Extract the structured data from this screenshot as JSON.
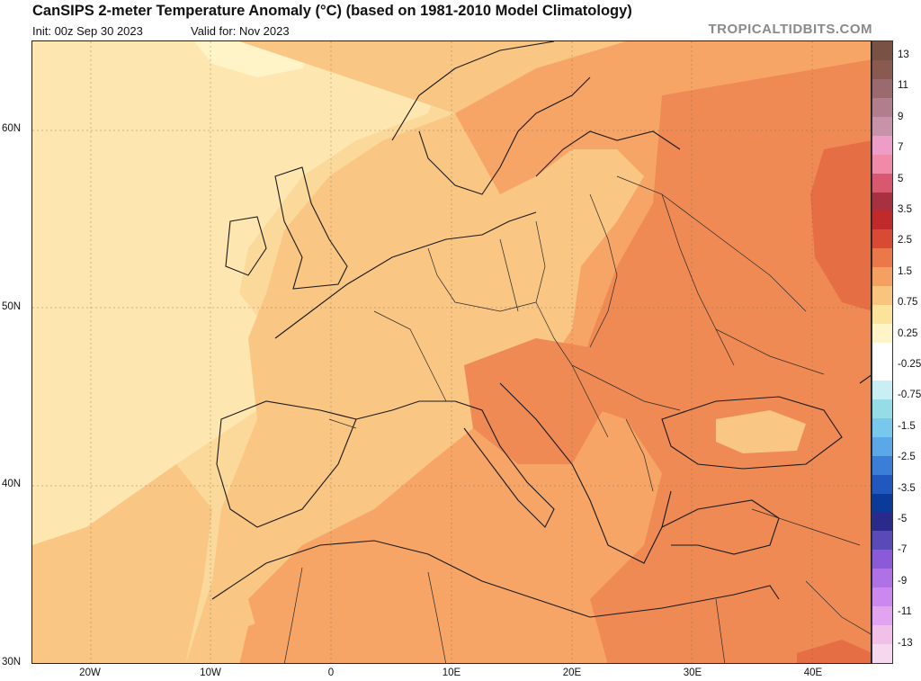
{
  "header": {
    "title": "CanSIPS 2-meter Temperature Anomaly (°C) (based on 1981-2010 Model Climatology)",
    "init": "Init: 00z Sep 30 2023",
    "valid": "Valid for: Nov 2023",
    "brand": "TROPICALTIDBITS.COM"
  },
  "map": {
    "latitude_labels": [
      "60N",
      "50N",
      "40N",
      "30N"
    ],
    "longitude_labels": [
      "20W",
      "10W",
      "0",
      "10E",
      "20E",
      "30E",
      "40E"
    ]
  },
  "colorbar": {
    "labels": [
      "13",
      "11",
      "9",
      "7",
      "5",
      "3.5",
      "2.5",
      "1.5",
      "0.75",
      "0.25",
      "-0.25",
      "-0.75",
      "-1.5",
      "-2.5",
      "-3.5",
      "-5",
      "-7",
      "-9",
      "-11",
      "-13"
    ],
    "colors": [
      "#7a5244",
      "#8a5a50",
      "#9a6a6e",
      "#b07e8c",
      "#c892a8",
      "#ee9cc8",
      "#f08aa8",
      "#d85870",
      "#a83040",
      "#c02a2a",
      "#d84a34",
      "#ea7848",
      "#f4a060",
      "#f8c47e",
      "#fbe39c",
      "#fff4c8",
      "#ffffff",
      "#ffffff",
      "#c8f0f4",
      "#96dce6",
      "#78c8ee",
      "#5aa8e8",
      "#3a7ed8",
      "#2058c0",
      "#0c3a9a",
      "#2a2a8c",
      "#5a4ab8",
      "#8a5ad8",
      "#b070e6",
      "#cc88ee",
      "#e0a4f0",
      "#f0c0e8",
      "#f6d8ee"
    ]
  }
}
